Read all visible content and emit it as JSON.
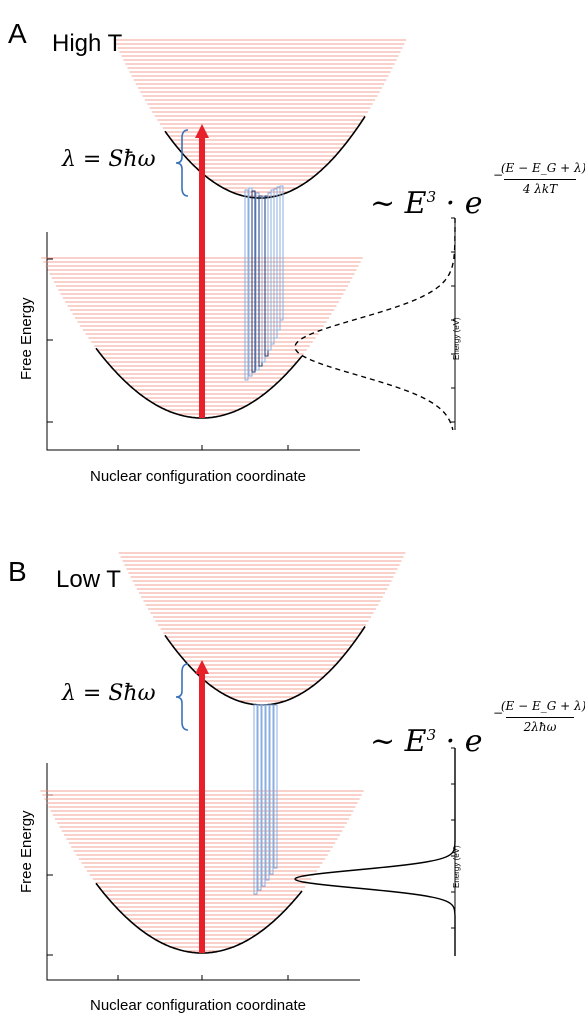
{
  "panels": [
    {
      "letter": "A",
      "condition": "High T",
      "lambda_eq": "λ = Sħω",
      "emission_prefix": "~ E",
      "emission_power": "3",
      "emission_dot": "·",
      "emission_e": "e",
      "exp_sign": "−",
      "exp_numerator": "(E − E_G + λ)²",
      "exp_denominator": "4 λkT",
      "ylabel": "Free Energy",
      "xlabel": "Nuclear configuration coordinate",
      "energy_axis_label": "Energy (eV)",
      "lineshape": "dashed",
      "colors": {
        "levels": "#f08070",
        "arrow": "#e8202a",
        "vibronic": "#8aaee0",
        "vibronic_dark": "#1b3a78",
        "brace": "#3b73b9"
      }
    },
    {
      "letter": "B",
      "condition": "Low T",
      "lambda_eq": "λ = Sħω",
      "emission_prefix": "~ E",
      "emission_power": "3",
      "emission_dot": "·",
      "emission_e": "e",
      "exp_sign": "−",
      "exp_numerator": "(E − E_G + λ)²",
      "exp_denominator": "2λħω",
      "ylabel": "Free Energy",
      "xlabel": "Nuclear configuration coordinate",
      "energy_axis_label": "Energy (eV)",
      "lineshape": "solid",
      "colors": {
        "levels": "#f08070",
        "arrow": "#e8202a",
        "vibronic": "#8aaee0",
        "vibronic_dark": "#1b3a78",
        "brace": "#3b73b9"
      }
    }
  ]
}
